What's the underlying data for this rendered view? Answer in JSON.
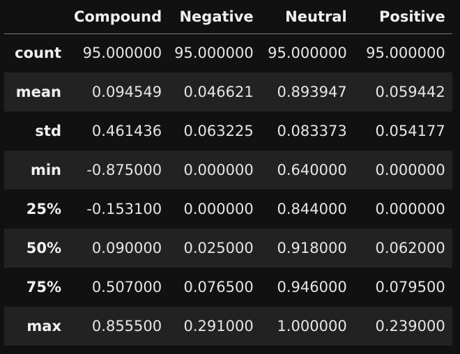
{
  "table": {
    "columns": [
      "",
      "Compound",
      "Negative",
      "Neutral",
      "Positive"
    ],
    "rows": [
      {
        "label": "count",
        "values": [
          "95.000000",
          "95.000000",
          "95.000000",
          "95.000000"
        ]
      },
      {
        "label": "mean",
        "values": [
          "0.094549",
          "0.046621",
          "0.893947",
          "0.059442"
        ]
      },
      {
        "label": "std",
        "values": [
          "0.461436",
          "0.063225",
          "0.083373",
          "0.054177"
        ]
      },
      {
        "label": "min",
        "values": [
          "-0.875000",
          "0.000000",
          "0.640000",
          "0.000000"
        ]
      },
      {
        "label": "25%",
        "values": [
          "-0.153100",
          "0.000000",
          "0.844000",
          "0.000000"
        ]
      },
      {
        "label": "50%",
        "values": [
          "0.090000",
          "0.025000",
          "0.918000",
          "0.062000"
        ]
      },
      {
        "label": "75%",
        "values": [
          "0.507000",
          "0.076500",
          "0.946000",
          "0.079500"
        ]
      },
      {
        "label": "max",
        "values": [
          "0.855500",
          "0.291000",
          "1.000000",
          "0.239000"
        ]
      }
    ]
  },
  "colors": {
    "background": "#111111",
    "row_alt": "#222222",
    "text": "#e6e6e6",
    "header_rule": "#7a7a7a"
  }
}
